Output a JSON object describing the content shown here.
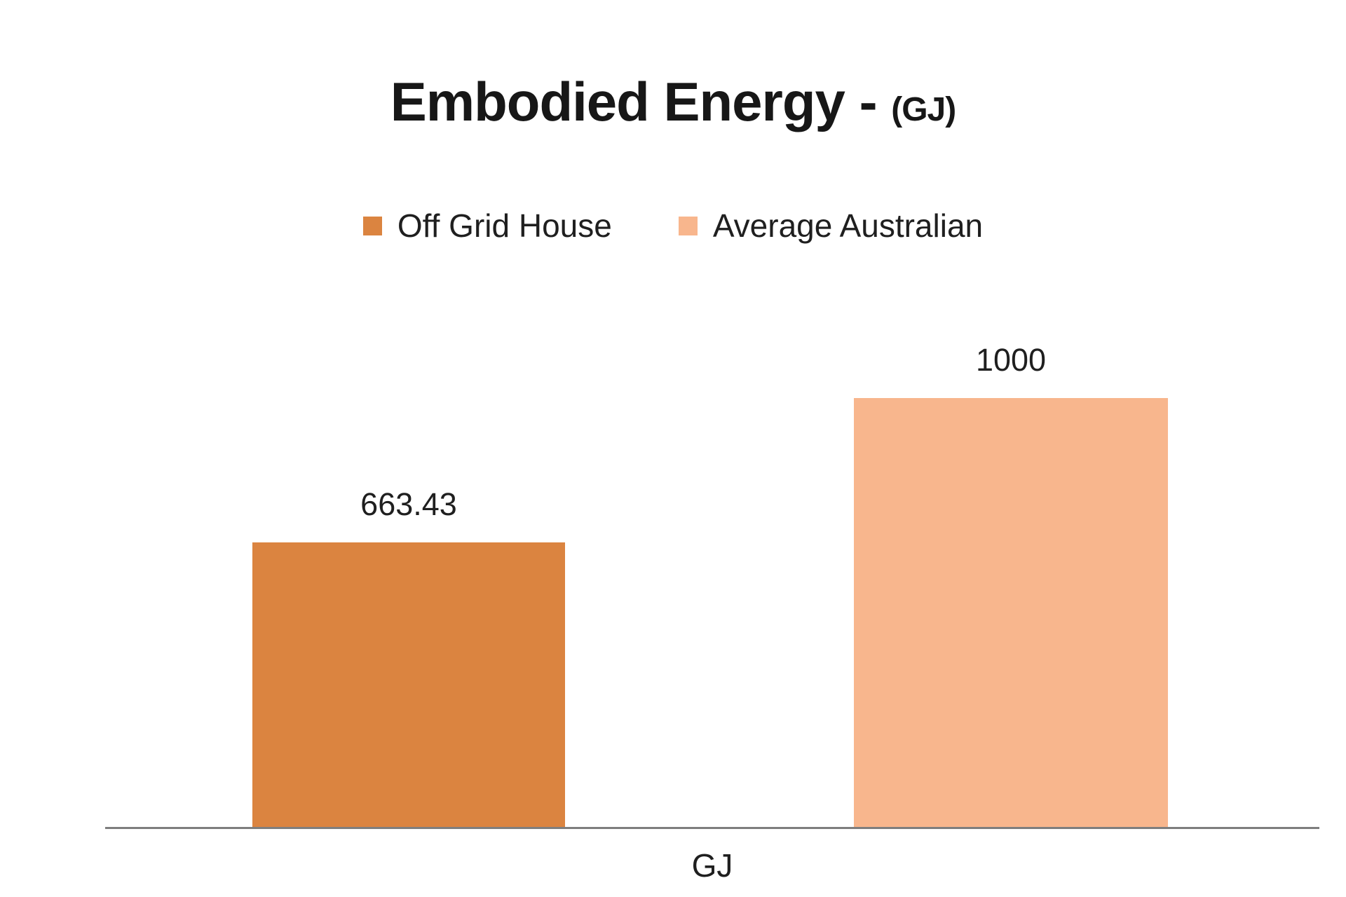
{
  "title": {
    "main": "Embodied Energy -",
    "unit": "(GJ)"
  },
  "legend": [
    {
      "label": "Off Grid House",
      "color": "#db8440"
    },
    {
      "label": "Average Australian",
      "color": "#f8b68d"
    }
  ],
  "chart_data": {
    "type": "bar",
    "title": "Embodied Energy - (GJ)",
    "categories": [
      "GJ"
    ],
    "series": [
      {
        "name": "Off Grid House",
        "values": [
          663.43
        ],
        "color": "#db8440"
      },
      {
        "name": "Average Australian",
        "values": [
          1000
        ],
        "color": "#f8b68d"
      }
    ],
    "data_labels": [
      "663.43",
      "1000"
    ],
    "xlabel": "GJ",
    "ylabel": "",
    "ylim": [
      0,
      1000
    ],
    "grid": false,
    "legend_position": "top",
    "axis_line_color": "#7e7e7e"
  }
}
